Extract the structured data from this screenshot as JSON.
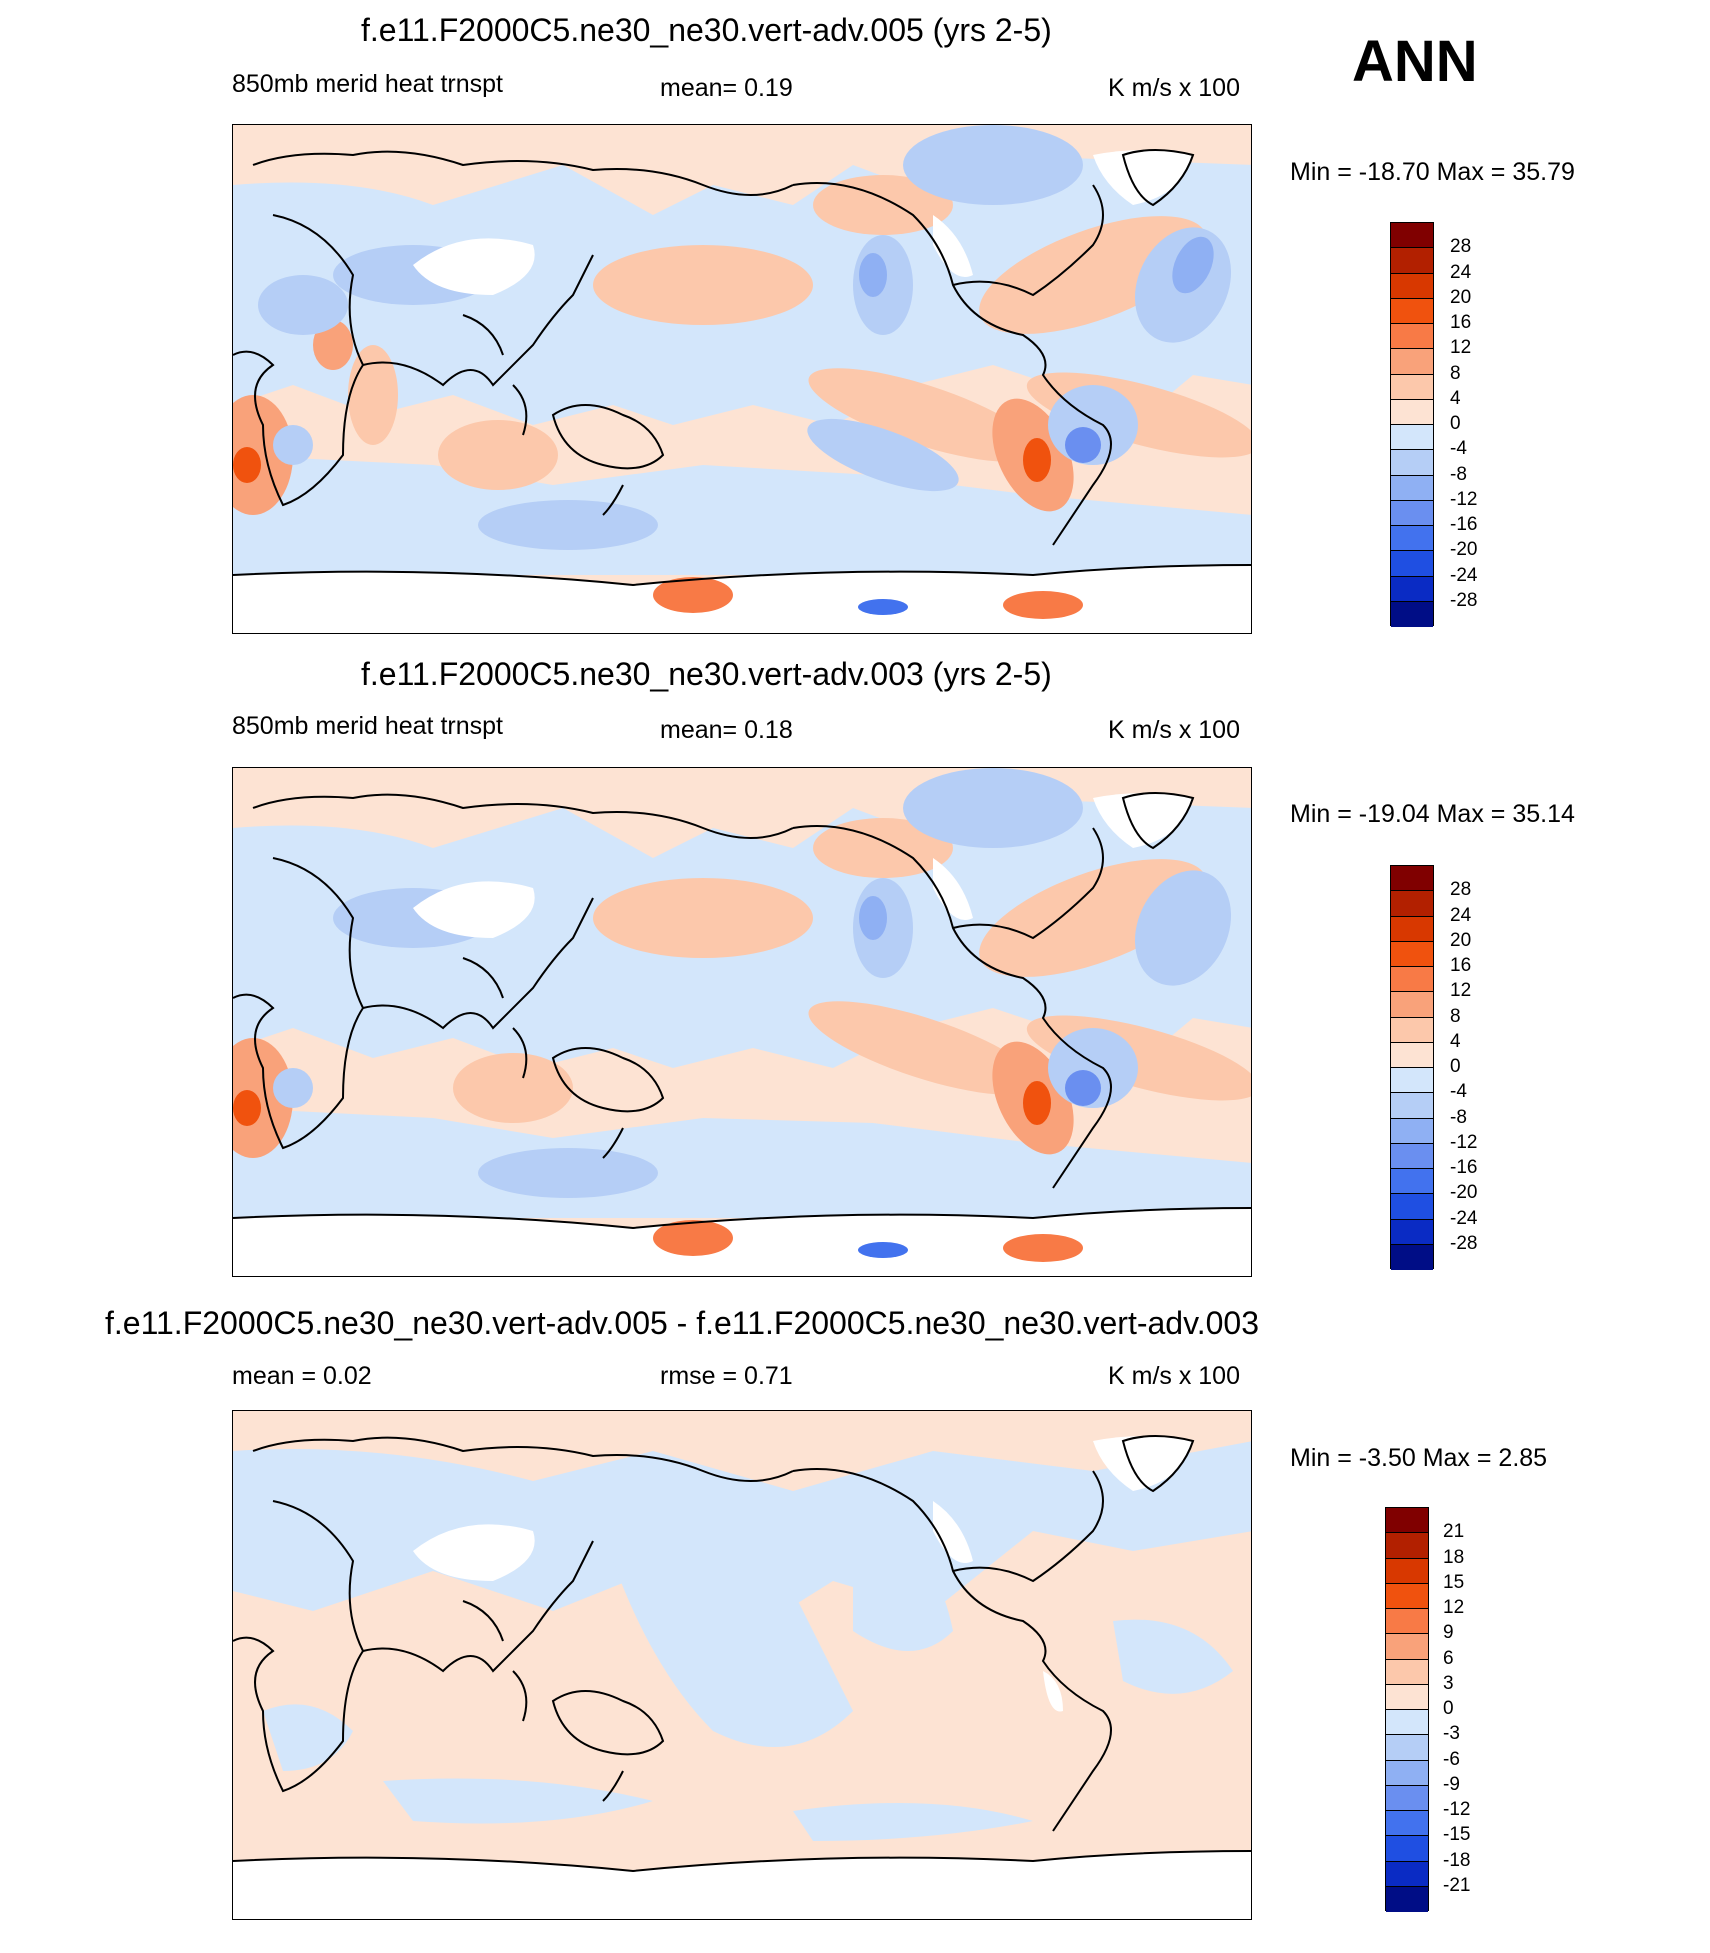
{
  "season_label": "ANN",
  "panels": [
    {
      "title": "f.e11.F2000C5.ne30_ne30.vert-adv.005 (yrs 2-5)",
      "left_label": "850mb merid heat trnspt",
      "center_label": "mean=   0.19",
      "units": "K m/s x 100",
      "minmax": "Min = -18.70 Max =  35.79"
    },
    {
      "title": "f.e11.F2000C5.ne30_ne30.vert-adv.003 (yrs 2-5)",
      "left_label": "850mb merid heat trnspt",
      "center_label": "mean=   0.18",
      "units": "K m/s x 100",
      "minmax": "Min = -19.04 Max =  35.14"
    },
    {
      "title": "f.e11.F2000C5.ne30_ne30.vert-adv.005 - f.e11.F2000C5.ne30_ne30.vert-adv.003",
      "left_label": "mean =   0.02",
      "center_label": "rmse =   0.71",
      "units": "K m/s x 100",
      "minmax": "Min =  -3.50 Max =   2.85"
    }
  ],
  "colorbar_main": {
    "labels": [
      "28",
      "24",
      "20",
      "16",
      "12",
      "8",
      "4",
      "0",
      "-4",
      "-8",
      "-12",
      "-16",
      "-20",
      "-24",
      "-28"
    ],
    "colors": [
      "#800000",
      "#b22000",
      "#d83800",
      "#f0520e",
      "#f87a46",
      "#f9a27a",
      "#fcc8ab",
      "#fde3d3",
      "#d3e6fb",
      "#b5cef6",
      "#8fb0f3",
      "#6a8ff0",
      "#4272ee",
      "#1f4fe2",
      "#0a2bc4",
      "#000d86"
    ]
  },
  "colorbar_diff": {
    "labels": [
      "21",
      "18",
      "15",
      "12",
      "9",
      "6",
      "3",
      "0",
      "-3",
      "-6",
      "-9",
      "-12",
      "-15",
      "-18",
      "-21"
    ],
    "colors": [
      "#800000",
      "#b22000",
      "#d83800",
      "#f0520e",
      "#f87a46",
      "#f9a27a",
      "#fcc8ab",
      "#fde3d3",
      "#d3e6fb",
      "#b5cef6",
      "#8fb0f3",
      "#6a8ff0",
      "#4272ee",
      "#1f4fe2",
      "#0a2bc4",
      "#000d86"
    ]
  },
  "map_colors": {
    "land_mask": "#ffffff",
    "coast": "#000000"
  }
}
